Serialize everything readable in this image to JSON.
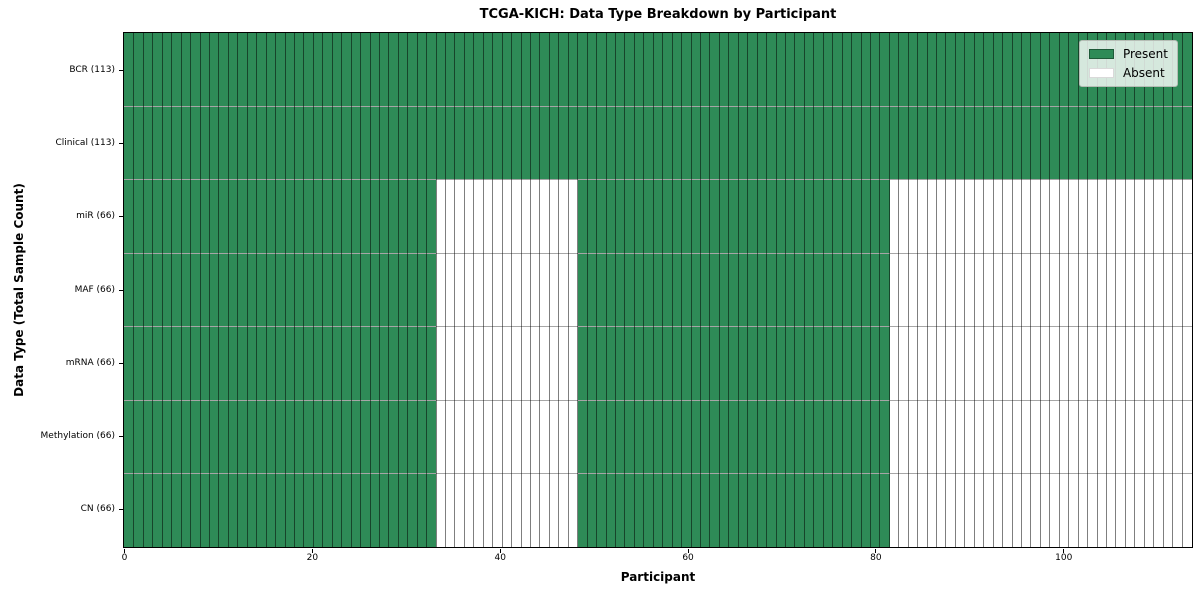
{
  "chart_data": {
    "type": "heatmap",
    "title": "TCGA-KICH: Data Type Breakdown by Participant",
    "xlabel": "Participant",
    "ylabel": "Data Type (Total Sample Count)",
    "x_ticks": [
      0,
      20,
      40,
      60,
      80,
      100
    ],
    "n_participants": 113,
    "n_rows": 7,
    "legend": {
      "position": "upper right",
      "entries": [
        {
          "label": "Present",
          "state": "present",
          "color": "#2e8b57"
        },
        {
          "label": "Absent",
          "state": "absent",
          "color": "#ffffff"
        }
      ]
    },
    "rows": [
      {
        "label": "BCR (113)",
        "present_count": 113,
        "present_ranges": [
          [
            0,
            113
          ]
        ]
      },
      {
        "label": "Clinical (113)",
        "present_count": 113,
        "present_ranges": [
          [
            0,
            113
          ]
        ]
      },
      {
        "label": "miR (66)",
        "present_count": 66,
        "present_ranges": [
          [
            0,
            33
          ],
          [
            48,
            81
          ]
        ]
      },
      {
        "label": "MAF (66)",
        "present_count": 66,
        "present_ranges": [
          [
            0,
            33
          ],
          [
            48,
            81
          ]
        ]
      },
      {
        "label": "mRNA (66)",
        "present_count": 66,
        "present_ranges": [
          [
            0,
            33
          ],
          [
            48,
            81
          ]
        ]
      },
      {
        "label": "Methylation (66)",
        "present_count": 66,
        "present_ranges": [
          [
            0,
            33
          ],
          [
            48,
            81
          ]
        ]
      },
      {
        "label": "CN (66)",
        "present_count": 66,
        "present_ranges": [
          [
            0,
            33
          ],
          [
            48,
            81
          ]
        ]
      }
    ],
    "colors": {
      "present": "#2e8b57",
      "absent": "#ffffff",
      "cell_edge": "rgba(0,0,0,0.5)",
      "row_edge": "rgba(0,0,0,0.35)",
      "spine": "#000000",
      "legend_bg": "rgba(255,255,255,0.8)",
      "legend_border": "#b5bdb5"
    }
  }
}
